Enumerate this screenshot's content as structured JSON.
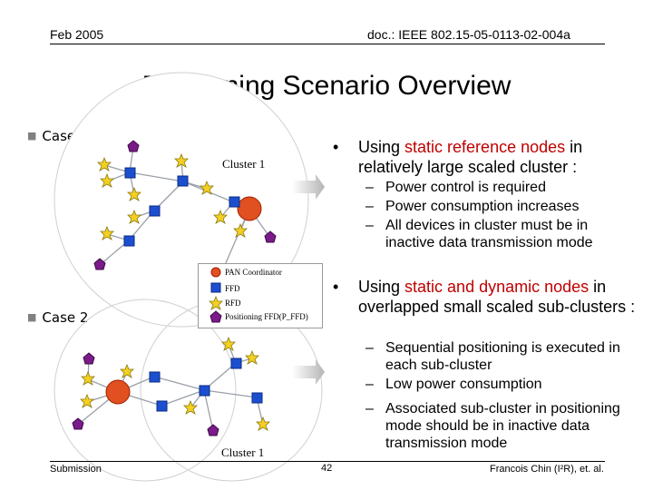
{
  "header": {
    "date": "Feb 2005",
    "doc_id": "doc.: IEEE 802.15-05-0113-02-004a"
  },
  "title": "Positioning Scenario Overview",
  "case1": {
    "label": "Case 1",
    "cluster_label": "Cluster 1",
    "bullet_pre": "Using ",
    "bullet_red": "static reference nodes",
    "bullet_post": " in relatively large scaled cluster :",
    "subs": [
      "Power control is required",
      "Power consumption increases",
      "All devices in cluster must be in inactive data transmission mode"
    ]
  },
  "legend": {
    "items": [
      {
        "label": "PAN Coordinator",
        "color": "#e05020"
      },
      {
        "label": "FFD",
        "color": "#1c4fd0"
      },
      {
        "label": "RFD",
        "color": "#f5d020"
      },
      {
        "label": "Positioning FFD(P_FFD)",
        "color": "#7b1a8a"
      }
    ]
  },
  "case2": {
    "label": "Case 2",
    "cluster_label": "Cluster 1",
    "bullet_pre": "Using ",
    "bullet_red": "static and dynamic nodes",
    "bullet_post": " in overlapped small scaled sub-clusters :",
    "subs": [
      "Sequential positioning is executed in each sub-cluster",
      "Low power consumption",
      "Associated sub-cluster in positioning mode should be in inactive data transmission mode"
    ]
  },
  "footer": {
    "left": "Submission",
    "page": "42",
    "right": "Francois Chin (I²R), et. al."
  }
}
